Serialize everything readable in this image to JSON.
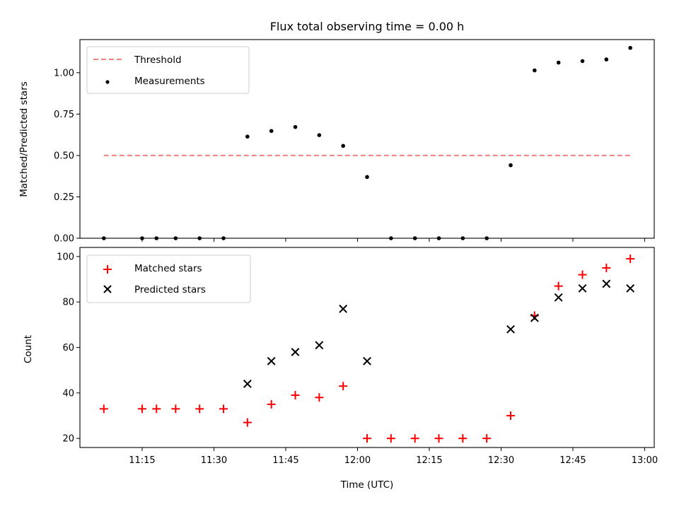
{
  "chart_data": [
    {
      "type": "scatter",
      "title": "Flux total observing time = 0.00 h",
      "xlabel": "",
      "ylabel": "Matched/Predicted stars",
      "ylim": [
        0.0,
        1.2
      ],
      "yticks": [
        "0.00",
        "0.25",
        "0.50",
        "0.75",
        "1.00"
      ],
      "legend_position": "top-left",
      "threshold": {
        "name": "Threshold",
        "value": 0.5,
        "x_range": [
          "11:07",
          "12:57"
        ],
        "color": "#f08080",
        "style": "dashed"
      },
      "series": [
        {
          "name": "Measurements",
          "color": "#000000",
          "marker": "dot",
          "x": [
            "11:07",
            "11:15",
            "11:18",
            "11:22",
            "11:27",
            "11:32",
            "11:37",
            "11:42",
            "11:47",
            "11:52",
            "11:57",
            "12:02",
            "12:07",
            "12:12",
            "12:17",
            "12:22",
            "12:27",
            "12:32",
            "12:37",
            "12:42",
            "12:47",
            "12:52",
            "12:57"
          ],
          "values": [
            0.0,
            0.0,
            0.0,
            0.0,
            0.0,
            0.0,
            0.614,
            0.648,
            0.672,
            0.623,
            0.558,
            0.37,
            0.0,
            0.0,
            0.0,
            0.0,
            0.0,
            0.441,
            1.014,
            1.061,
            1.07,
            1.08,
            1.15
          ]
        }
      ]
    },
    {
      "type": "scatter",
      "title": "",
      "xlabel": "Time (UTC)",
      "ylabel": "Count",
      "ylim": [
        16,
        104
      ],
      "yticks": [
        "20",
        "40",
        "60",
        "80",
        "100"
      ],
      "xlim": [
        "11:02",
        "13:02"
      ],
      "xticks": [
        "11:15",
        "11:30",
        "11:45",
        "12:00",
        "12:15",
        "12:30",
        "12:45",
        "13:00"
      ],
      "legend_position": "top-left",
      "series": [
        {
          "name": "Matched stars",
          "color": "#ff0000",
          "marker": "plus",
          "x": [
            "11:07",
            "11:15",
            "11:18",
            "11:22",
            "11:27",
            "11:32",
            "11:37",
            "11:42",
            "11:47",
            "11:52",
            "11:57",
            "12:02",
            "12:07",
            "12:12",
            "12:17",
            "12:22",
            "12:27",
            "12:32",
            "12:37",
            "12:42",
            "12:47",
            "12:52",
            "12:57"
          ],
          "values": [
            33,
            33,
            33,
            33,
            33,
            33,
            27,
            35,
            39,
            38,
            43,
            20,
            20,
            20,
            20,
            20,
            20,
            30,
            74,
            87,
            92,
            95,
            99
          ]
        },
        {
          "name": "Predicted stars",
          "color": "#000000",
          "marker": "x",
          "x": [
            "11:37",
            "11:42",
            "11:47",
            "11:52",
            "11:57",
            "12:02",
            "12:32",
            "12:37",
            "12:42",
            "12:47",
            "12:52",
            "12:57"
          ],
          "values": [
            44,
            54,
            58,
            61,
            77,
            54,
            68,
            73,
            82,
            86,
            88,
            86
          ]
        }
      ]
    }
  ]
}
